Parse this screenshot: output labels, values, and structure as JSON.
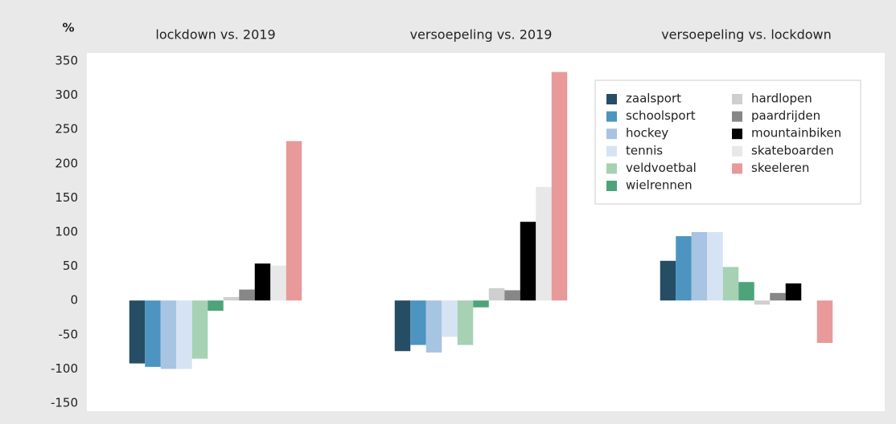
{
  "chart_data": {
    "type": "bar",
    "unit": "%",
    "categories": [
      "lockdown vs. 2019",
      "versoepeling vs. 2019",
      "versoepeling vs. lockdown"
    ],
    "series": [
      {
        "name": "zaalsport",
        "color": "#254e64",
        "values": [
          -92,
          -74,
          58
        ]
      },
      {
        "name": "schoolsport",
        "color": "#4d94c0",
        "values": [
          -97,
          -65,
          94
        ]
      },
      {
        "name": "hockey",
        "color": "#a7c4e2",
        "values": [
          -100,
          -76,
          100
        ]
      },
      {
        "name": "tennis",
        "color": "#d6e3f3",
        "values": [
          -100,
          -53,
          100
        ]
      },
      {
        "name": "veldvoetbal",
        "color": "#a6d1b3",
        "values": [
          -85,
          -65,
          49
        ]
      },
      {
        "name": "wielrennen",
        "color": "#4ea47a",
        "values": [
          -15,
          -10,
          27
        ]
      },
      {
        "name": "hardlopen",
        "color": "#cfcfcf",
        "values": [
          5,
          18,
          -6
        ]
      },
      {
        "name": "paardrijden",
        "color": "#878787",
        "values": [
          16,
          15,
          11
        ]
      },
      {
        "name": "mountainbiken",
        "color": "#000000",
        "values": [
          54,
          115,
          25
        ]
      },
      {
        "name": "skateboarden",
        "color": "#e8e8e8",
        "values": [
          51,
          166,
          0
        ]
      },
      {
        "name": "skeeleren",
        "color": "#e89a9a",
        "values": [
          233,
          334,
          -62
        ]
      }
    ],
    "ylim": [
      -150,
      350
    ],
    "yticks": [
      -150,
      -100,
      -50,
      0,
      50,
      100,
      150,
      200,
      250,
      300,
      350
    ],
    "grid": false,
    "legend": "top-right"
  }
}
